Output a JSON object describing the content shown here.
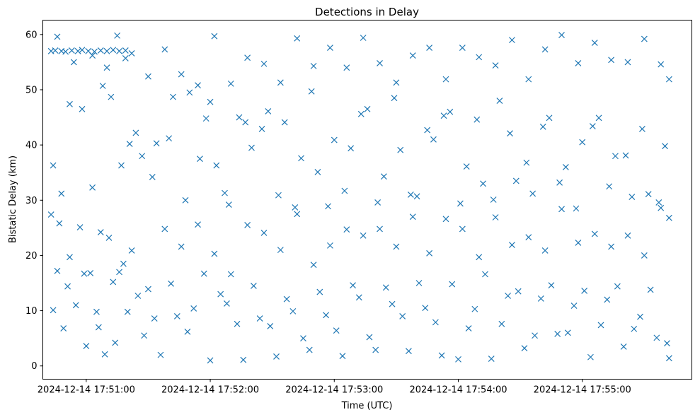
{
  "chart_data": {
    "type": "scatter",
    "title": "Detections in Delay",
    "xlabel": "Time (UTC)",
    "ylabel": "Bistatic Delay (km)",
    "x_ticks": [
      "2024-12-14 17:51:00",
      "2024-12-14 17:52:00",
      "2024-12-14 17:53:00",
      "2024-12-14 17:54:00",
      "2024-12-14 17:55:00"
    ],
    "y_ticks": [
      0,
      10,
      20,
      30,
      40,
      50,
      60
    ],
    "xlim": [
      "2024-12-14 17:50:39",
      "2024-12-14 17:55:53"
    ],
    "ylim": [
      -2.4,
      62.6
    ],
    "marker": "x",
    "color": "#1f77b4",
    "grid": false,
    "legend": "none",
    "series": [
      {
        "points": [
          [
            "17:50:43",
            57.0
          ],
          [
            "17:50:45",
            57.1
          ],
          [
            "17:50:48",
            57.0
          ],
          [
            "17:50:50",
            56.9
          ],
          [
            "17:50:53",
            57.1
          ],
          [
            "17:50:56",
            57.0
          ],
          [
            "17:50:58",
            57.2
          ],
          [
            "17:51:01",
            57.0
          ],
          [
            "17:51:04",
            56.9
          ],
          [
            "17:51:07",
            57.1
          ],
          [
            "17:51:10",
            57.0
          ],
          [
            "17:51:13",
            57.2
          ],
          [
            "17:51:16",
            57.0
          ],
          [
            "17:51:19",
            57.1
          ],
          [
            "17:50:46",
            59.6
          ],
          [
            "17:50:54",
            55.0
          ],
          [
            "17:51:03",
            56.2
          ],
          [
            "17:51:10",
            54.0
          ],
          [
            "17:51:19",
            55.7
          ],
          [
            "17:51:15",
            59.8
          ],
          [
            "17:51:21",
            40.2
          ],
          [
            "17:51:27",
            38.0
          ],
          [
            "17:51:32",
            34.2
          ],
          [
            "17:51:40",
            41.2
          ],
          [
            "17:51:48",
            30.0
          ],
          [
            "17:51:55",
            37.5
          ],
          [
            "17:51:58",
            44.8
          ],
          [
            "17:52:03",
            36.3
          ],
          [
            "17:52:07",
            31.3
          ],
          [
            "17:52:14",
            45.0
          ],
          [
            "17:52:20",
            39.5
          ],
          [
            "17:52:28",
            46.1
          ],
          [
            "17:52:36",
            44.1
          ],
          [
            "17:52:44",
            37.6
          ],
          [
            "17:52:52",
            35.1
          ],
          [
            "17:53:00",
            40.9
          ],
          [
            "17:53:08",
            39.4
          ],
          [
            "17:53:16",
            46.5
          ],
          [
            "17:53:24",
            34.3
          ],
          [
            "17:53:32",
            39.1
          ],
          [
            "17:53:40",
            30.7
          ],
          [
            "17:53:48",
            41.0
          ],
          [
            "17:53:56",
            46.0
          ],
          [
            "17:54:04",
            36.1
          ],
          [
            "17:54:12",
            33.0
          ],
          [
            "17:54:20",
            48.0
          ],
          [
            "17:54:28",
            33.5
          ],
          [
            "17:54:36",
            31.2
          ],
          [
            "17:54:44",
            44.9
          ],
          [
            "17:54:52",
            36.0
          ],
          [
            "17:55:00",
            40.5
          ],
          [
            "17:55:08",
            44.9
          ],
          [
            "17:55:16",
            38.0
          ],
          [
            "17:55:24",
            30.6
          ],
          [
            "17:55:32",
            31.1
          ],
          [
            "17:55:40",
            39.8
          ],
          [
            "17:51:22",
            56.6
          ],
          [
            "17:51:30",
            52.4
          ],
          [
            "17:51:38",
            57.3
          ],
          [
            "17:51:46",
            52.8
          ],
          [
            "17:51:54",
            50.8
          ],
          [
            "17:52:02",
            59.7
          ],
          [
            "17:52:10",
            51.1
          ],
          [
            "17:52:18",
            55.8
          ],
          [
            "17:52:26",
            54.7
          ],
          [
            "17:52:34",
            51.3
          ],
          [
            "17:52:42",
            59.3
          ],
          [
            "17:52:50",
            54.3
          ],
          [
            "17:52:58",
            57.6
          ],
          [
            "17:53:06",
            54.0
          ],
          [
            "17:53:14",
            59.4
          ],
          [
            "17:53:22",
            54.8
          ],
          [
            "17:53:30",
            51.3
          ],
          [
            "17:53:38",
            56.2
          ],
          [
            "17:53:46",
            57.6
          ],
          [
            "17:53:54",
            51.9
          ],
          [
            "17:54:02",
            57.6
          ],
          [
            "17:54:10",
            55.9
          ],
          [
            "17:54:18",
            54.4
          ],
          [
            "17:54:26",
            59.0
          ],
          [
            "17:54:34",
            51.9
          ],
          [
            "17:54:42",
            57.3
          ],
          [
            "17:54:50",
            59.9
          ],
          [
            "17:54:58",
            54.8
          ],
          [
            "17:55:06",
            58.5
          ],
          [
            "17:55:14",
            55.4
          ],
          [
            "17:55:22",
            55.0
          ],
          [
            "17:55:30",
            59.2
          ],
          [
            "17:55:38",
            54.6
          ],
          [
            "17:55:42",
            51.9
          ],
          [
            "17:50:43",
            27.4
          ],
          [
            "17:50:47",
            25.8
          ],
          [
            "17:50:52",
            19.7
          ],
          [
            "17:50:57",
            25.1
          ],
          [
            "17:51:02",
            16.8
          ],
          [
            "17:51:07",
            24.2
          ],
          [
            "17:51:11",
            23.2
          ],
          [
            "17:51:16",
            17.0
          ],
          [
            "17:51:22",
            20.9
          ],
          [
            "17:51:30",
            13.9
          ],
          [
            "17:51:38",
            24.8
          ],
          [
            "17:51:46",
            21.6
          ],
          [
            "17:51:54",
            25.6
          ],
          [
            "17:52:02",
            20.3
          ],
          [
            "17:52:10",
            16.6
          ],
          [
            "17:52:18",
            25.5
          ],
          [
            "17:52:26",
            24.1
          ],
          [
            "17:52:34",
            21.0
          ],
          [
            "17:52:42",
            27.5
          ],
          [
            "17:52:50",
            18.3
          ],
          [
            "17:52:58",
            21.8
          ],
          [
            "17:53:06",
            24.7
          ],
          [
            "17:53:14",
            23.6
          ],
          [
            "17:53:22",
            24.8
          ],
          [
            "17:53:30",
            21.6
          ],
          [
            "17:53:38",
            27.0
          ],
          [
            "17:53:46",
            20.4
          ],
          [
            "17:53:54",
            26.6
          ],
          [
            "17:54:02",
            24.8
          ],
          [
            "17:54:10",
            19.7
          ],
          [
            "17:54:18",
            26.9
          ],
          [
            "17:54:26",
            21.9
          ],
          [
            "17:54:34",
            23.3
          ],
          [
            "17:54:42",
            20.9
          ],
          [
            "17:54:50",
            28.4
          ],
          [
            "17:54:58",
            22.3
          ],
          [
            "17:55:06",
            23.9
          ],
          [
            "17:55:14",
            21.6
          ],
          [
            "17:55:22",
            23.6
          ],
          [
            "17:55:30",
            20.0
          ],
          [
            "17:55:38",
            28.6
          ],
          [
            "17:55:42",
            26.8
          ],
          [
            "17:50:44",
            10.1
          ],
          [
            "17:50:49",
            6.8
          ],
          [
            "17:50:55",
            11.0
          ],
          [
            "17:51:00",
            3.6
          ],
          [
            "17:51:05",
            9.8
          ],
          [
            "17:51:09",
            2.1
          ],
          [
            "17:51:14",
            4.2
          ],
          [
            "17:51:20",
            9.8
          ],
          [
            "17:51:28",
            5.5
          ],
          [
            "17:51:36",
            2.0
          ],
          [
            "17:51:44",
            9.0
          ],
          [
            "17:51:52",
            10.4
          ],
          [
            "17:52:00",
            1.0
          ],
          [
            "17:52:08",
            11.3
          ],
          [
            "17:52:16",
            1.1
          ],
          [
            "17:52:24",
            8.6
          ],
          [
            "17:52:32",
            1.7
          ],
          [
            "17:52:40",
            9.9
          ],
          [
            "17:52:48",
            2.9
          ],
          [
            "17:52:56",
            9.2
          ],
          [
            "17:53:04",
            1.8
          ],
          [
            "17:53:12",
            12.4
          ],
          [
            "17:53:20",
            2.9
          ],
          [
            "17:53:28",
            11.2
          ],
          [
            "17:53:36",
            2.7
          ],
          [
            "17:53:44",
            10.5
          ],
          [
            "17:53:52",
            1.9
          ],
          [
            "17:54:00",
            1.2
          ],
          [
            "17:54:08",
            10.3
          ],
          [
            "17:54:16",
            1.3
          ],
          [
            "17:54:24",
            12.7
          ],
          [
            "17:54:32",
            3.2
          ],
          [
            "17:54:40",
            12.2
          ],
          [
            "17:54:48",
            5.8
          ],
          [
            "17:54:56",
            10.9
          ],
          [
            "17:55:04",
            1.6
          ],
          [
            "17:55:12",
            12.0
          ],
          [
            "17:55:20",
            3.5
          ],
          [
            "17:55:28",
            8.9
          ],
          [
            "17:55:36",
            5.1
          ],
          [
            "17:55:42",
            1.4
          ],
          [
            "17:50:44",
            36.3
          ],
          [
            "17:50:48",
            31.2
          ],
          [
            "17:50:52",
            47.4
          ],
          [
            "17:50:58",
            46.5
          ],
          [
            "17:51:03",
            32.3
          ],
          [
            "17:51:08",
            50.7
          ],
          [
            "17:51:12",
            48.7
          ],
          [
            "17:51:17",
            36.3
          ],
          [
            "17:51:24",
            42.2
          ],
          [
            "17:51:34",
            40.3
          ],
          [
            "17:51:42",
            48.7
          ],
          [
            "17:51:50",
            49.5
          ],
          [
            "17:52:00",
            47.8
          ],
          [
            "17:52:09",
            29.2
          ],
          [
            "17:52:17",
            44.1
          ],
          [
            "17:52:25",
            42.9
          ],
          [
            "17:52:33",
            30.9
          ],
          [
            "17:52:41",
            28.7
          ],
          [
            "17:52:49",
            49.7
          ],
          [
            "17:52:57",
            28.9
          ],
          [
            "17:53:05",
            31.7
          ],
          [
            "17:53:13",
            45.6
          ],
          [
            "17:53:21",
            29.6
          ],
          [
            "17:53:29",
            48.5
          ],
          [
            "17:53:37",
            31.0
          ],
          [
            "17:53:45",
            42.7
          ],
          [
            "17:53:53",
            45.3
          ],
          [
            "17:54:01",
            29.4
          ],
          [
            "17:54:09",
            44.6
          ],
          [
            "17:54:17",
            30.1
          ],
          [
            "17:54:25",
            42.1
          ],
          [
            "17:54:33",
            36.8
          ],
          [
            "17:54:41",
            43.3
          ],
          [
            "17:54:49",
            33.2
          ],
          [
            "17:54:57",
            28.5
          ],
          [
            "17:55:05",
            43.4
          ],
          [
            "17:55:13",
            32.5
          ],
          [
            "17:55:21",
            38.1
          ],
          [
            "17:55:29",
            42.9
          ],
          [
            "17:55:37",
            29.6
          ],
          [
            "17:50:46",
            17.2
          ],
          [
            "17:50:51",
            14.4
          ],
          [
            "17:50:59",
            16.7
          ],
          [
            "17:51:06",
            7.0
          ],
          [
            "17:51:13",
            15.2
          ],
          [
            "17:51:18",
            18.5
          ],
          [
            "17:51:25",
            12.7
          ],
          [
            "17:51:33",
            8.6
          ],
          [
            "17:51:41",
            14.9
          ],
          [
            "17:51:49",
            6.2
          ],
          [
            "17:51:57",
            16.7
          ],
          [
            "17:52:05",
            13.0
          ],
          [
            "17:52:13",
            7.6
          ],
          [
            "17:52:21",
            14.5
          ],
          [
            "17:52:29",
            7.2
          ],
          [
            "17:52:37",
            12.1
          ],
          [
            "17:52:45",
            5.0
          ],
          [
            "17:52:53",
            13.4
          ],
          [
            "17:53:01",
            6.4
          ],
          [
            "17:53:09",
            14.6
          ],
          [
            "17:53:17",
            5.2
          ],
          [
            "17:53:25",
            14.2
          ],
          [
            "17:53:33",
            9.0
          ],
          [
            "17:53:41",
            15.0
          ],
          [
            "17:53:49",
            7.9
          ],
          [
            "17:53:57",
            14.8
          ],
          [
            "17:54:05",
            6.8
          ],
          [
            "17:54:13",
            16.6
          ],
          [
            "17:54:21",
            7.6
          ],
          [
            "17:54:29",
            13.5
          ],
          [
            "17:54:37",
            5.5
          ],
          [
            "17:54:45",
            14.6
          ],
          [
            "17:54:53",
            6.0
          ],
          [
            "17:55:01",
            13.6
          ],
          [
            "17:55:09",
            7.4
          ],
          [
            "17:55:17",
            14.4
          ],
          [
            "17:55:25",
            6.7
          ],
          [
            "17:55:33",
            13.8
          ],
          [
            "17:55:41",
            4.1
          ]
        ]
      }
    ]
  }
}
